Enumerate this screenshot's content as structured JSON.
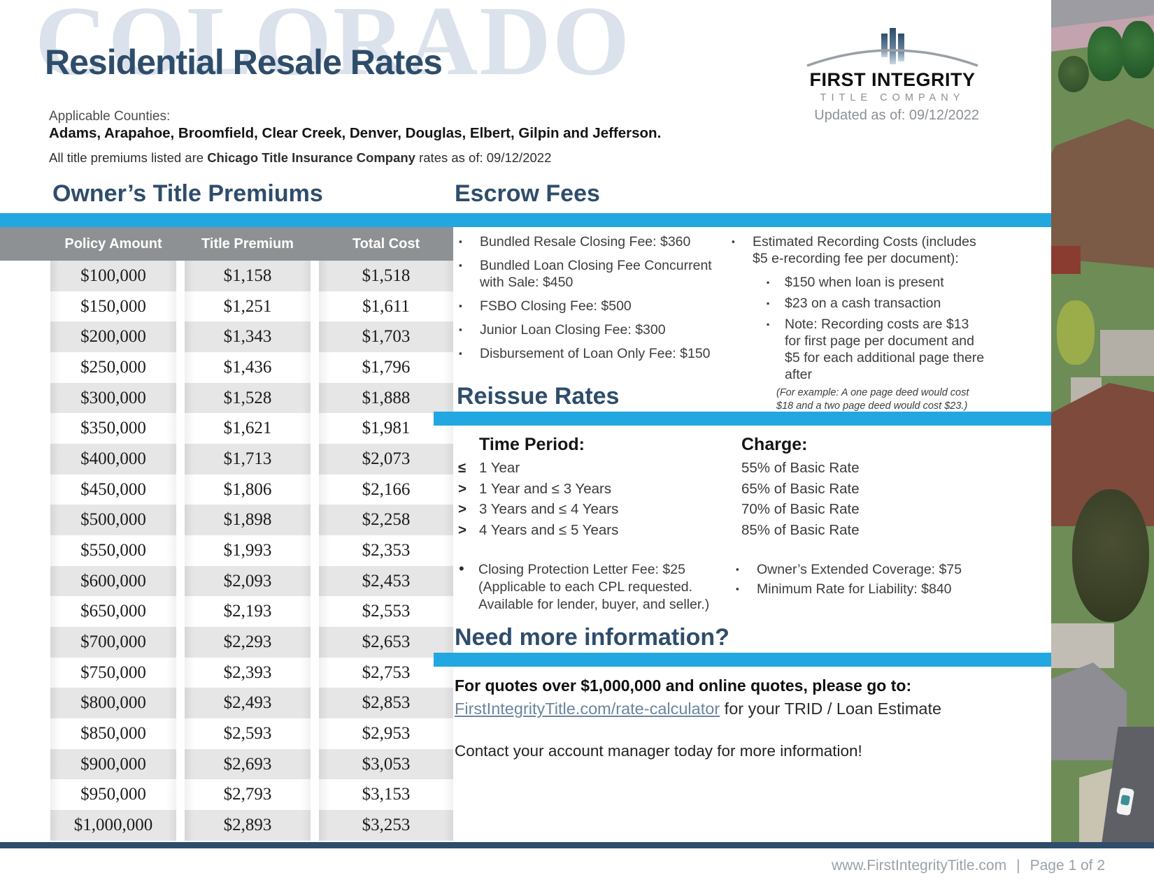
{
  "header": {
    "watermark": "COLORADO",
    "title": "Residential Resale Rates",
    "counties_label": "Applicable Counties:",
    "counties": "Adams, Arapahoe, Broomfield, Clear Creek, Denver, Douglas, Elbert, Gilpin and Jefferson.",
    "premium_note_prefix": "All title premiums listed are ",
    "premium_note_company": "Chicago Title Insurance Company",
    "premium_note_suffix": " rates as of: 09/12/2022",
    "updated": "Updated as of: 09/12/2022"
  },
  "logo": {
    "name": "FIRST INTEGRITY",
    "subname": "TITLE COMPANY"
  },
  "owners_table": {
    "heading": "Owner’s Title Premiums",
    "columns": [
      "Policy Amount",
      "Title Premium",
      "Total Cost"
    ],
    "rows": [
      [
        "$100,000",
        "$1,158",
        "$1,518"
      ],
      [
        "$150,000",
        "$1,251",
        "$1,611"
      ],
      [
        "$200,000",
        "$1,343",
        "$1,703"
      ],
      [
        "$250,000",
        "$1,436",
        "$1,796"
      ],
      [
        "$300,000",
        "$1,528",
        "$1,888"
      ],
      [
        "$350,000",
        "$1,621",
        "$1,981"
      ],
      [
        "$400,000",
        "$1,713",
        "$2,073"
      ],
      [
        "$450,000",
        "$1,806",
        "$2,166"
      ],
      [
        "$500,000",
        "$1,898",
        "$2,258"
      ],
      [
        "$550,000",
        "$1,993",
        "$2,353"
      ],
      [
        "$600,000",
        "$2,093",
        "$2,453"
      ],
      [
        "$650,000",
        "$2,193",
        "$2,553"
      ],
      [
        "$700,000",
        "$2,293",
        "$2,653"
      ],
      [
        "$750,000",
        "$2,393",
        "$2,753"
      ],
      [
        "$800,000",
        "$2,493",
        "$2,853"
      ],
      [
        "$850,000",
        "$2,593",
        "$2,953"
      ],
      [
        "$900,000",
        "$2,693",
        "$3,053"
      ],
      [
        "$950,000",
        "$2,793",
        "$3,153"
      ],
      [
        "$1,000,000",
        "$2,893",
        "$3,253"
      ]
    ]
  },
  "escrow": {
    "heading": "Escrow Fees",
    "left_bullets": [
      "Bundled Resale Closing Fee: $360",
      "Bundled Loan Closing Fee Concurrent with Sale: $450",
      "FSBO Closing Fee: $500",
      "Junior Loan Closing Fee: $300",
      "Disbursement of Loan Only Fee: $150"
    ],
    "recording_lead": "Estimated Recording Costs (includes $5 e-recording fee per document):",
    "recording_sub_bullets": [
      "$150 when loan is present",
      "$23 on a cash transaction",
      "Note: Recording costs are $13 for first page per document and $5 for each additional page there after"
    ],
    "recording_example": "(For example: A one page deed would cost $18 and a two page deed would cost $23.)"
  },
  "reissue": {
    "heading": "Reissue Rates",
    "time_period_label": "Time Period:",
    "charge_label": "Charge:",
    "rows": [
      {
        "symbol": "≤",
        "period": "1 Year",
        "charge": "55% of Basic Rate"
      },
      {
        "symbol": ">",
        "period": "1 Year and ≤ 3 Years",
        "charge": "65% of Basic Rate"
      },
      {
        "symbol": ">",
        "period": "3 Years and ≤ 4 Years",
        "charge": "70% of Basic Rate"
      },
      {
        "symbol": ">",
        "period": "4 Years and ≤ 5 Years",
        "charge": "85% of Basic Rate"
      }
    ],
    "cpl_bullet_title": "Closing Protection Letter Fee: $25",
    "cpl_bullet_note": "(Applicable to each CPL requested. Available for lender, buyer, and seller.)",
    "right_bullets": [
      "Owner’s Extended Coverage: $75",
      "Minimum Rate for Liability: $840"
    ]
  },
  "more_info": {
    "heading": "Need more information?",
    "lead": "For quotes over $1,000,000 and online quotes, please go to:",
    "link": "FirstIntegrityTitle.com/rate-calculator",
    "link_suffix": " for your TRID / Loan Estimate",
    "contact": "Contact your account manager today for more information!"
  },
  "footer": {
    "website": "www.FirstIntegrityTitle.com",
    "separator": "|",
    "page": "Page 1 of 2"
  },
  "colors": {
    "accent_cyan": "#22a7e0",
    "brand_navy": "#2e4d6b",
    "table_header_gray": "#8e9193",
    "row_gray": "#e3e3e4",
    "link_blue": "#6a85a0",
    "footer_gray": "#9ba1a6",
    "watermark_blue": "#dbe2ec"
  }
}
